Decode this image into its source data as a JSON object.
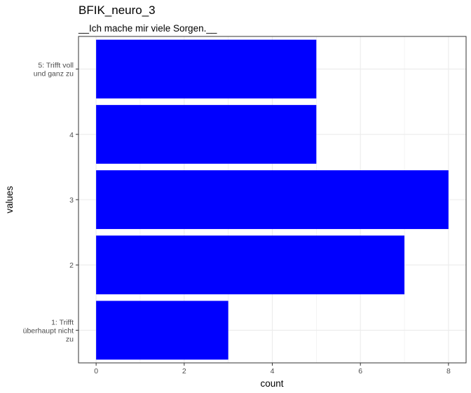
{
  "chart_data": {
    "type": "bar",
    "orientation": "horizontal",
    "title": "BFIK_neuro_3",
    "subtitle": "__Ich mache mir viele Sorgen.__",
    "xlabel": "count",
    "ylabel": "values",
    "categories": [
      [
        "1: Trifft",
        "überhaupt nicht",
        "zu"
      ],
      [
        "2"
      ],
      [
        "3"
      ],
      [
        "4"
      ],
      [
        "5: Trifft voll",
        "und ganz zu"
      ]
    ],
    "values": [
      3,
      7,
      8,
      5,
      5
    ],
    "x_ticks": [
      "0",
      "2",
      "4",
      "6",
      "8"
    ],
    "xlim": [
      -0.4,
      8.4
    ],
    "grid": true,
    "bar_color": "#0000ff",
    "grid_color": "#ebebeb",
    "panel_border_color": "#333333"
  }
}
